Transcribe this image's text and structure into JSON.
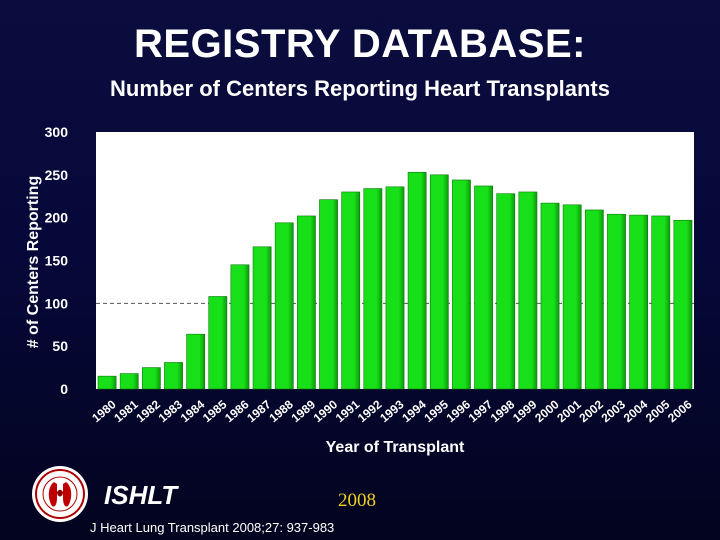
{
  "header": {
    "title": "REGISTRY DATABASE:",
    "subtitle": "Number of Centers Reporting Heart Transplants"
  },
  "footer": {
    "org": "ISHLT",
    "year": "2008",
    "citation": "J Heart Lung Transplant 2008;27: 937-983"
  },
  "colors": {
    "bar": "#18e018",
    "bar_dark": "#0a9a0a",
    "plot_bg": "#ffffff",
    "text": "#ffffff",
    "year_text": "#f0d020"
  },
  "chart_data": {
    "type": "bar",
    "xlabel": "Year of Transplant",
    "ylabel": "# of Centers Reporting",
    "ylim": [
      0,
      300
    ],
    "yticks": [
      0,
      50,
      100,
      150,
      200,
      250,
      300
    ],
    "reference_line": 100,
    "grid": false,
    "categories": [
      "1980",
      "1981",
      "1982",
      "1983",
      "1984",
      "1985",
      "1986",
      "1987",
      "1988",
      "1989",
      "1990",
      "1991",
      "1992",
      "1993",
      "1994",
      "1995",
      "1996",
      "1997",
      "1998",
      "1999",
      "2000",
      "2001",
      "2002",
      "2003",
      "2004",
      "2005",
      "2006"
    ],
    "values": [
      15,
      18,
      25,
      31,
      64,
      108,
      145,
      166,
      194,
      202,
      221,
      230,
      234,
      236,
      253,
      250,
      244,
      237,
      228,
      230,
      217,
      215,
      209,
      204,
      203,
      202,
      197
    ]
  }
}
